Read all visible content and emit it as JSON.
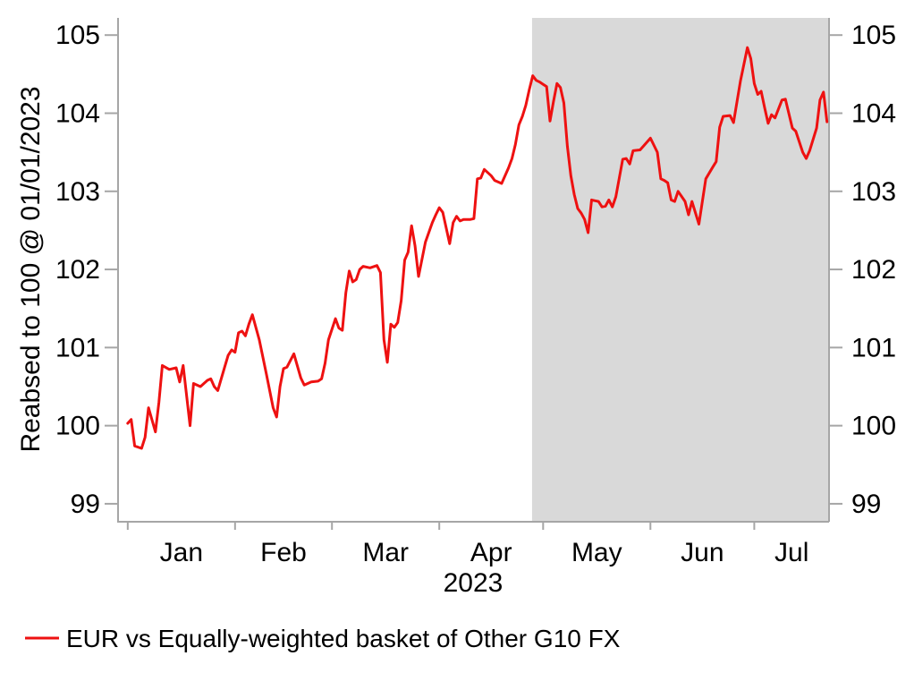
{
  "figure": {
    "background_color": "#FFFFFF",
    "axis_color": "#A6A6A6",
    "text_color": "#000000",
    "y_axis_title": "Reabsed to 100 @ 01/01/2023",
    "x_axis_title": "2023",
    "legend": {
      "swatch": "red-line",
      "label": "EUR vs Equally-weighted basket of Other G10 FX",
      "color": "#EE1111"
    }
  },
  "chart_data": {
    "type": "line",
    "title": "",
    "xlabel": "2023",
    "ylabel": "Reabsed to 100 @ 01/01/2023",
    "legend_position": "bottom-left",
    "grid": false,
    "x_unit": "day_of_year_2023",
    "xlim_days": [
      -1.8,
      203.6
    ],
    "ylim": [
      98.77,
      105.22
    ],
    "yticks": [
      99,
      100,
      101,
      102,
      103,
      104,
      105
    ],
    "ytick_sides": [
      "left",
      "right"
    ],
    "x_tick_labels": [
      "Jan",
      "Feb",
      "Mar",
      "Apr",
      "May",
      "Jun",
      "Jul"
    ],
    "x_month_start_days": [
      1,
      32,
      60,
      91,
      121,
      152,
      182
    ],
    "shaded_region": {
      "start_day": 117.8,
      "end_day": 203.6,
      "color": "#D9D9D9"
    },
    "series": [
      {
        "name": "EUR vs Equally-weighted basket of Other G10 FX",
        "color": "#EE1111",
        "width": 3,
        "points": [
          [
            1,
            100.03
          ],
          [
            2,
            100.08
          ],
          [
            3,
            99.74
          ],
          [
            5,
            99.71
          ],
          [
            6,
            99.85
          ],
          [
            7,
            100.23
          ],
          [
            9,
            99.92
          ],
          [
            10,
            100.3
          ],
          [
            11,
            100.77
          ],
          [
            13,
            100.72
          ],
          [
            15,
            100.74
          ],
          [
            16,
            100.56
          ],
          [
            17,
            100.77
          ],
          [
            19,
            100.0
          ],
          [
            20,
            100.54
          ],
          [
            22,
            100.5
          ],
          [
            24,
            100.58
          ],
          [
            25,
            100.6
          ],
          [
            26,
            100.5
          ],
          [
            27,
            100.45
          ],
          [
            29,
            100.75
          ],
          [
            30,
            100.9
          ],
          [
            31,
            100.97
          ],
          [
            32,
            100.94
          ],
          [
            33,
            101.19
          ],
          [
            34,
            101.21
          ],
          [
            35,
            101.15
          ],
          [
            36,
            101.3
          ],
          [
            37,
            101.42
          ],
          [
            39,
            101.1
          ],
          [
            41,
            100.67
          ],
          [
            43,
            100.23
          ],
          [
            44,
            100.11
          ],
          [
            45,
            100.5
          ],
          [
            46,
            100.73
          ],
          [
            47,
            100.75
          ],
          [
            49,
            100.92
          ],
          [
            51,
            100.61
          ],
          [
            52,
            100.52
          ],
          [
            54,
            100.56
          ],
          [
            56,
            100.57
          ],
          [
            57,
            100.6
          ],
          [
            58,
            100.8
          ],
          [
            59,
            101.1
          ],
          [
            61,
            101.37
          ],
          [
            62,
            101.25
          ],
          [
            63,
            101.22
          ],
          [
            64,
            101.7
          ],
          [
            65,
            101.98
          ],
          [
            66,
            101.84
          ],
          [
            67,
            101.87
          ],
          [
            68,
            102.0
          ],
          [
            69,
            102.04
          ],
          [
            71,
            102.02
          ],
          [
            73,
            102.05
          ],
          [
            74,
            101.96
          ],
          [
            75,
            101.1
          ],
          [
            76,
            100.81
          ],
          [
            77,
            101.3
          ],
          [
            78,
            101.26
          ],
          [
            79,
            101.32
          ],
          [
            80,
            101.6
          ],
          [
            81,
            102.12
          ],
          [
            82,
            102.22
          ],
          [
            83,
            102.56
          ],
          [
            84,
            102.3
          ],
          [
            85,
            101.91
          ],
          [
            87,
            102.35
          ],
          [
            89,
            102.6
          ],
          [
            90,
            102.7
          ],
          [
            91,
            102.79
          ],
          [
            92,
            102.73
          ],
          [
            94,
            102.33
          ],
          [
            95,
            102.6
          ],
          [
            96,
            102.68
          ],
          [
            97,
            102.62
          ],
          [
            98,
            102.64
          ],
          [
            100,
            102.64
          ],
          [
            101,
            102.65
          ],
          [
            102,
            103.16
          ],
          [
            103,
            103.17
          ],
          [
            104,
            103.28
          ],
          [
            106,
            103.2
          ],
          [
            107,
            103.14
          ],
          [
            109,
            103.1
          ],
          [
            111,
            103.3
          ],
          [
            112,
            103.42
          ],
          [
            113,
            103.6
          ],
          [
            114,
            103.85
          ],
          [
            115,
            103.96
          ],
          [
            116,
            104.1
          ],
          [
            117,
            104.3
          ],
          [
            118,
            104.48
          ],
          [
            119,
            104.42
          ],
          [
            120,
            104.4
          ],
          [
            121,
            104.37
          ],
          [
            122,
            104.34
          ],
          [
            123,
            103.9
          ],
          [
            124,
            104.15
          ],
          [
            125,
            104.38
          ],
          [
            126,
            104.33
          ],
          [
            127,
            104.13
          ],
          [
            128,
            103.58
          ],
          [
            129,
            103.2
          ],
          [
            130,
            102.96
          ],
          [
            131,
            102.78
          ],
          [
            132,
            102.72
          ],
          [
            133,
            102.64
          ],
          [
            134,
            102.47
          ],
          [
            135,
            102.89
          ],
          [
            136,
            102.88
          ],
          [
            137,
            102.87
          ],
          [
            138,
            102.8
          ],
          [
            139,
            102.81
          ],
          [
            140,
            102.89
          ],
          [
            141,
            102.8
          ],
          [
            142,
            102.93
          ],
          [
            144,
            103.41
          ],
          [
            145,
            103.42
          ],
          [
            146,
            103.35
          ],
          [
            147,
            103.52
          ],
          [
            149,
            103.53
          ],
          [
            150,
            103.58
          ],
          [
            152,
            103.68
          ],
          [
            154,
            103.5
          ],
          [
            155,
            103.16
          ],
          [
            156,
            103.14
          ],
          [
            157,
            103.11
          ],
          [
            158,
            102.89
          ],
          [
            159,
            102.87
          ],
          [
            160,
            103.0
          ],
          [
            162,
            102.87
          ],
          [
            163,
            102.7
          ],
          [
            164,
            102.87
          ],
          [
            166,
            102.58
          ],
          [
            168,
            103.16
          ],
          [
            170,
            103.31
          ],
          [
            171,
            103.38
          ],
          [
            172,
            103.82
          ],
          [
            173,
            103.96
          ],
          [
            175,
            103.97
          ],
          [
            176,
            103.88
          ],
          [
            178,
            104.41
          ],
          [
            180,
            104.84
          ],
          [
            181,
            104.7
          ],
          [
            182,
            104.38
          ],
          [
            183,
            104.24
          ],
          [
            184,
            104.28
          ],
          [
            185,
            104.07
          ],
          [
            186,
            103.87
          ],
          [
            187,
            103.98
          ],
          [
            188,
            103.94
          ],
          [
            190,
            104.17
          ],
          [
            191,
            104.18
          ],
          [
            193,
            103.81
          ],
          [
            194,
            103.77
          ],
          [
            196,
            103.5
          ],
          [
            197,
            103.42
          ],
          [
            198,
            103.52
          ],
          [
            200,
            103.81
          ],
          [
            201,
            104.17
          ],
          [
            202,
            104.27
          ],
          [
            203,
            103.89
          ]
        ]
      }
    ]
  }
}
